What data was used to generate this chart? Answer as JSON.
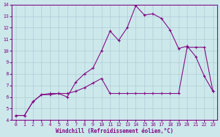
{
  "xlabel": "Windchill (Refroidissement éolien,°C)",
  "background_color": "#cce8eb",
  "line_color": "#800080",
  "grid_color": "#b0d0d8",
  "xlim": [
    -0.5,
    23.5
  ],
  "ylim": [
    4,
    14
  ],
  "xticks": [
    0,
    1,
    2,
    3,
    4,
    5,
    6,
    7,
    8,
    9,
    10,
    11,
    12,
    13,
    14,
    15,
    16,
    17,
    18,
    19,
    20,
    21,
    22,
    23
  ],
  "yticks": [
    4,
    5,
    6,
    7,
    8,
    9,
    10,
    11,
    12,
    13,
    14
  ],
  "line1_x": [
    0,
    1,
    2,
    3,
    4,
    5,
    6,
    7,
    8,
    9,
    10,
    11,
    12,
    13,
    14,
    15,
    16,
    17,
    18,
    19,
    20,
    21,
    22,
    23
  ],
  "line1_y": [
    4.4,
    4.4,
    5.6,
    6.2,
    6.2,
    6.3,
    6.0,
    7.3,
    8.0,
    8.5,
    10.0,
    11.7,
    10.9,
    12.0,
    13.9,
    13.1,
    13.2,
    12.8,
    11.8,
    10.2,
    10.4,
    9.5,
    7.8,
    6.5
  ],
  "line2_x": [
    0,
    1,
    2,
    3,
    4,
    5,
    6,
    7,
    8,
    9,
    10,
    11,
    12,
    13,
    14,
    15,
    16,
    17,
    18,
    19,
    20,
    21,
    22,
    23
  ],
  "line2_y": [
    4.4,
    4.4,
    5.6,
    6.2,
    6.3,
    6.3,
    6.3,
    6.5,
    6.8,
    7.2,
    7.6,
    6.3,
    6.3,
    6.3,
    6.3,
    6.3,
    6.3,
    6.3,
    6.3,
    6.3,
    10.3,
    10.3,
    10.3,
    6.5
  ],
  "xlabel_fontsize": 5.5,
  "tick_fontsize": 5
}
